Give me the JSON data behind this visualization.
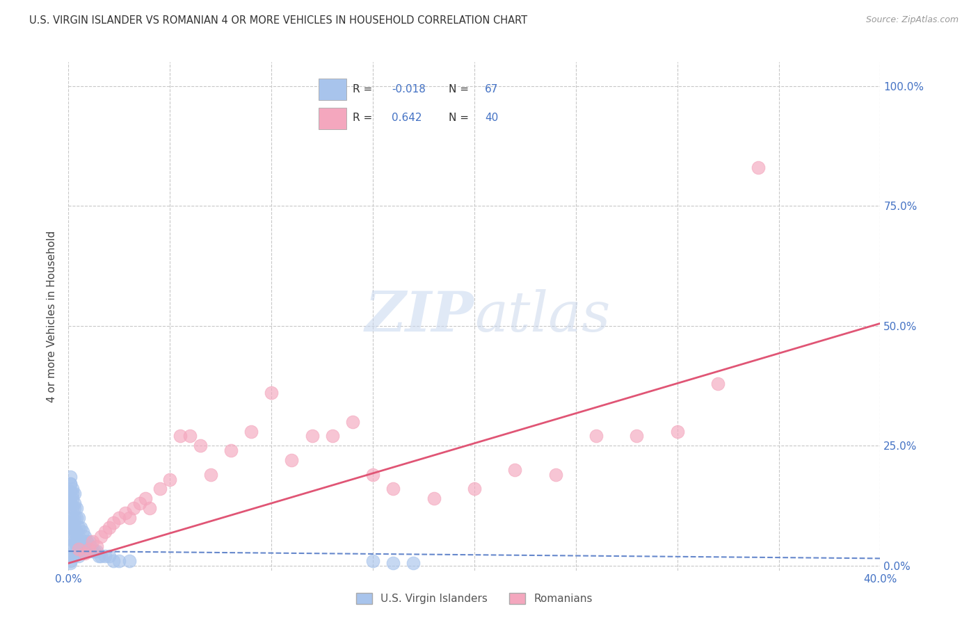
{
  "title": "U.S. VIRGIN ISLANDER VS ROMANIAN 4 OR MORE VEHICLES IN HOUSEHOLD CORRELATION CHART",
  "source": "Source: ZipAtlas.com",
  "ylabel": "4 or more Vehicles in Household",
  "xlim": [
    0.0,
    0.4
  ],
  "ylim": [
    -0.01,
    1.05
  ],
  "yticks": [
    0.0,
    0.25,
    0.5,
    0.75,
    1.0
  ],
  "ytick_labels": [
    "0.0%",
    "25.0%",
    "50.0%",
    "75.0%",
    "100.0%"
  ],
  "xticks": [
    0.0,
    0.05,
    0.1,
    0.15,
    0.2,
    0.25,
    0.3,
    0.35,
    0.4
  ],
  "xtick_labels": [
    "0.0%",
    "",
    "",
    "",
    "",
    "",
    "",
    "",
    "40.0%"
  ],
  "color_vi": "#a8c4ec",
  "color_ro": "#f4a7be",
  "color_vi_line": "#6688cc",
  "color_ro_line": "#e05575",
  "color_blue_text": "#4472c4",
  "watermark_zip": "ZIP",
  "watermark_atlas": "atlas",
  "background_color": "#ffffff",
  "grid_color": "#c8c8c8",
  "legend_label_vi": "U.S. Virgin Islanders",
  "legend_label_ro": "Romanians",
  "vi_scatter_x": [
    0.001,
    0.001,
    0.001,
    0.001,
    0.001,
    0.001,
    0.001,
    0.001,
    0.001,
    0.001,
    0.002,
    0.002,
    0.002,
    0.002,
    0.002,
    0.002,
    0.002,
    0.002,
    0.003,
    0.003,
    0.003,
    0.003,
    0.003,
    0.003,
    0.004,
    0.004,
    0.004,
    0.004,
    0.005,
    0.005,
    0.005,
    0.005,
    0.006,
    0.006,
    0.007,
    0.007,
    0.008,
    0.008,
    0.009,
    0.01,
    0.01,
    0.011,
    0.012,
    0.013,
    0.014,
    0.015,
    0.016,
    0.018,
    0.02,
    0.022,
    0.025,
    0.03,
    0.15,
    0.16,
    0.17,
    0.001,
    0.001,
    0.002,
    0.003,
    0.004,
    0.004,
    0.005,
    0.001,
    0.002,
    0.003,
    0.001
  ],
  "vi_scatter_y": [
    0.185,
    0.17,
    0.155,
    0.14,
    0.08,
    0.06,
    0.04,
    0.02,
    0.01,
    0.005,
    0.16,
    0.14,
    0.12,
    0.1,
    0.08,
    0.06,
    0.04,
    0.02,
    0.15,
    0.13,
    0.1,
    0.08,
    0.05,
    0.02,
    0.12,
    0.1,
    0.07,
    0.04,
    0.1,
    0.08,
    0.06,
    0.03,
    0.08,
    0.05,
    0.07,
    0.04,
    0.06,
    0.03,
    0.05,
    0.05,
    0.03,
    0.04,
    0.03,
    0.03,
    0.03,
    0.02,
    0.02,
    0.02,
    0.02,
    0.01,
    0.01,
    0.01,
    0.01,
    0.005,
    0.005,
    0.13,
    0.11,
    0.09,
    0.07,
    0.05,
    0.03,
    0.02,
    0.17,
    0.15,
    0.12,
    0.09
  ],
  "ro_scatter_x": [
    0.005,
    0.008,
    0.01,
    0.012,
    0.014,
    0.016,
    0.018,
    0.02,
    0.022,
    0.025,
    0.028,
    0.03,
    0.032,
    0.035,
    0.038,
    0.04,
    0.045,
    0.05,
    0.055,
    0.06,
    0.065,
    0.07,
    0.08,
    0.09,
    0.1,
    0.11,
    0.12,
    0.13,
    0.14,
    0.15,
    0.16,
    0.18,
    0.2,
    0.22,
    0.24,
    0.26,
    0.28,
    0.3,
    0.32,
    0.34
  ],
  "ro_scatter_y": [
    0.035,
    0.025,
    0.035,
    0.05,
    0.04,
    0.06,
    0.07,
    0.08,
    0.09,
    0.1,
    0.11,
    0.1,
    0.12,
    0.13,
    0.14,
    0.12,
    0.16,
    0.18,
    0.27,
    0.27,
    0.25,
    0.19,
    0.24,
    0.28,
    0.36,
    0.22,
    0.27,
    0.27,
    0.3,
    0.19,
    0.16,
    0.14,
    0.16,
    0.2,
    0.19,
    0.27,
    0.27,
    0.28,
    0.38,
    0.83
  ],
  "vi_trend_x": [
    0.0,
    0.4
  ],
  "vi_trend_y": [
    0.03,
    0.015
  ],
  "ro_trend_x": [
    0.0,
    0.4
  ],
  "ro_trend_y": [
    0.005,
    0.505
  ]
}
